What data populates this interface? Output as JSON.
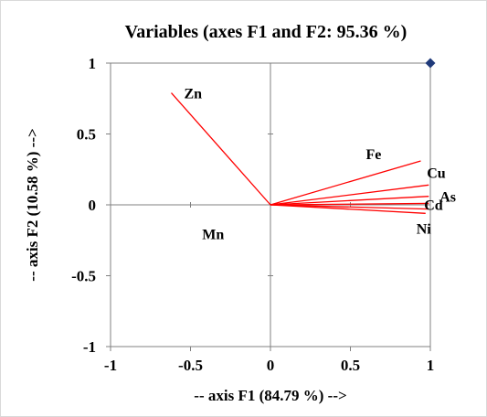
{
  "chart_data": {
    "type": "scatter",
    "title": "Variables (axes F1 and F2: 95.36 %)",
    "xlabel": "-- axis F1 (84.79 %) -->",
    "ylabel": "-- axis F2 (10.58 %) -->",
    "xlim": [
      -1,
      1
    ],
    "ylim": [
      -1,
      1
    ],
    "x_ticks": [
      "-1",
      "-0.5",
      "0",
      "0.5",
      "1"
    ],
    "y_ticks": [
      "1",
      "0.5",
      "0",
      "-0.5",
      "-1"
    ],
    "grid": false,
    "vector_color": "#ff0000",
    "marker_color": "#1f3a7a",
    "vectors": [
      {
        "name": "Zn",
        "x": -0.62,
        "y": 0.79
      },
      {
        "name": "Fe",
        "x": 0.94,
        "y": 0.31
      },
      {
        "name": "Cu",
        "x": 0.99,
        "y": 0.14
      },
      {
        "name": "As",
        "x": 0.99,
        "y": 0.06
      },
      {
        "name": "Cd",
        "x": 0.99,
        "y": 0.01
      },
      {
        "name": "Ni",
        "x": 0.97,
        "y": -0.06
      },
      {
        "name": "Mn",
        "x": 0.99,
        "y": -0.03
      }
    ],
    "marker": {
      "x": 1,
      "y": 1
    }
  }
}
